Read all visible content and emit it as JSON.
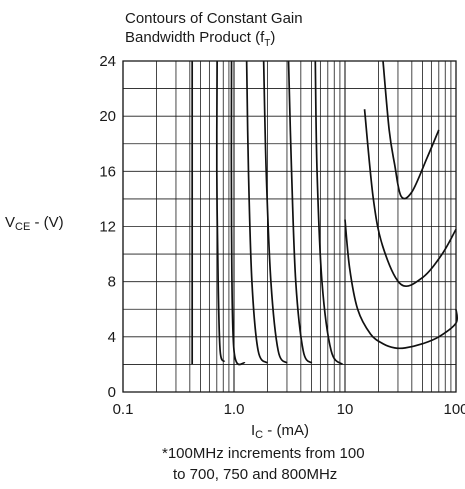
{
  "chart_data": {
    "type": "line",
    "title_line1": "Contours of Constant Gain",
    "title_line2_main": "Bandwidth Product (f",
    "title_line2_sub": "T",
    "title_line2_end": ")",
    "ylabel_main": "V",
    "ylabel_sub": "CE",
    "ylabel_end": " - (V)",
    "xlabel_main": "I",
    "xlabel_sub": "C",
    "xlabel_end": " - (mA)",
    "x_scale": "log",
    "xlim": [
      0.1,
      100
    ],
    "ylim": [
      0,
      24
    ],
    "x_ticks": [
      0.1,
      1.0,
      10,
      100
    ],
    "x_tick_labels": [
      "0.1",
      "1.0",
      "10",
      "100"
    ],
    "y_ticks": [
      0,
      4,
      8,
      12,
      16,
      20,
      24
    ],
    "y_tick_labels": [
      "0",
      "4",
      "8",
      "12",
      "16",
      "20",
      "24"
    ],
    "grid": true,
    "note_line1": "*100MHz increments from 100",
    "note_line2": "to 700, 750 and 800MHz",
    "series": [
      {
        "x": [
          0.42,
          0.42
        ],
        "y": [
          2,
          24
        ]
      },
      {
        "x": [
          0.82,
          0.75,
          0.72,
          0.7,
          0.705
        ],
        "y": [
          2.2,
          3,
          8,
          16,
          24
        ]
      },
      {
        "x": [
          1.25,
          1.0,
          0.95,
          0.95
        ],
        "y": [
          2.1,
          3,
          12,
          24
        ]
      },
      {
        "x": [
          2.0,
          1.65,
          1.45,
          1.35,
          1.3
        ],
        "y": [
          2.1,
          3,
          8,
          16,
          24
        ]
      },
      {
        "x": [
          3.0,
          2.5,
          2.15,
          1.95,
          1.85
        ],
        "y": [
          2.1,
          3,
          8,
          16,
          24
        ]
      },
      {
        "x": [
          5.0,
          4.2,
          3.6,
          3.3,
          3.1
        ],
        "y": [
          2.1,
          3,
          8,
          16,
          24
        ]
      },
      {
        "x": [
          9.5,
          7.5,
          6.2,
          5.6,
          5.4
        ],
        "y": [
          2.0,
          3,
          8,
          16,
          24
        ]
      },
      {
        "x": [
          22,
          25,
          28,
          32,
          40,
          55,
          70
        ],
        "y": [
          24,
          19,
          16.5,
          14.2,
          14.5,
          17,
          19
        ]
      },
      {
        "x": [
          15,
          18,
          22,
          32,
          50,
          75,
          100
        ],
        "y": [
          20.5,
          14,
          10.5,
          7.8,
          8.3,
          10,
          11.8
        ]
      },
      {
        "x": [
          10,
          11,
          13,
          17,
          22,
          28,
          35,
          50,
          70,
          100,
          115
        ],
        "y": [
          12.5,
          9,
          6,
          4.2,
          3.5,
          3.2,
          3.2,
          3.5,
          4.0,
          5.0,
          6.0
        ]
      }
    ]
  }
}
